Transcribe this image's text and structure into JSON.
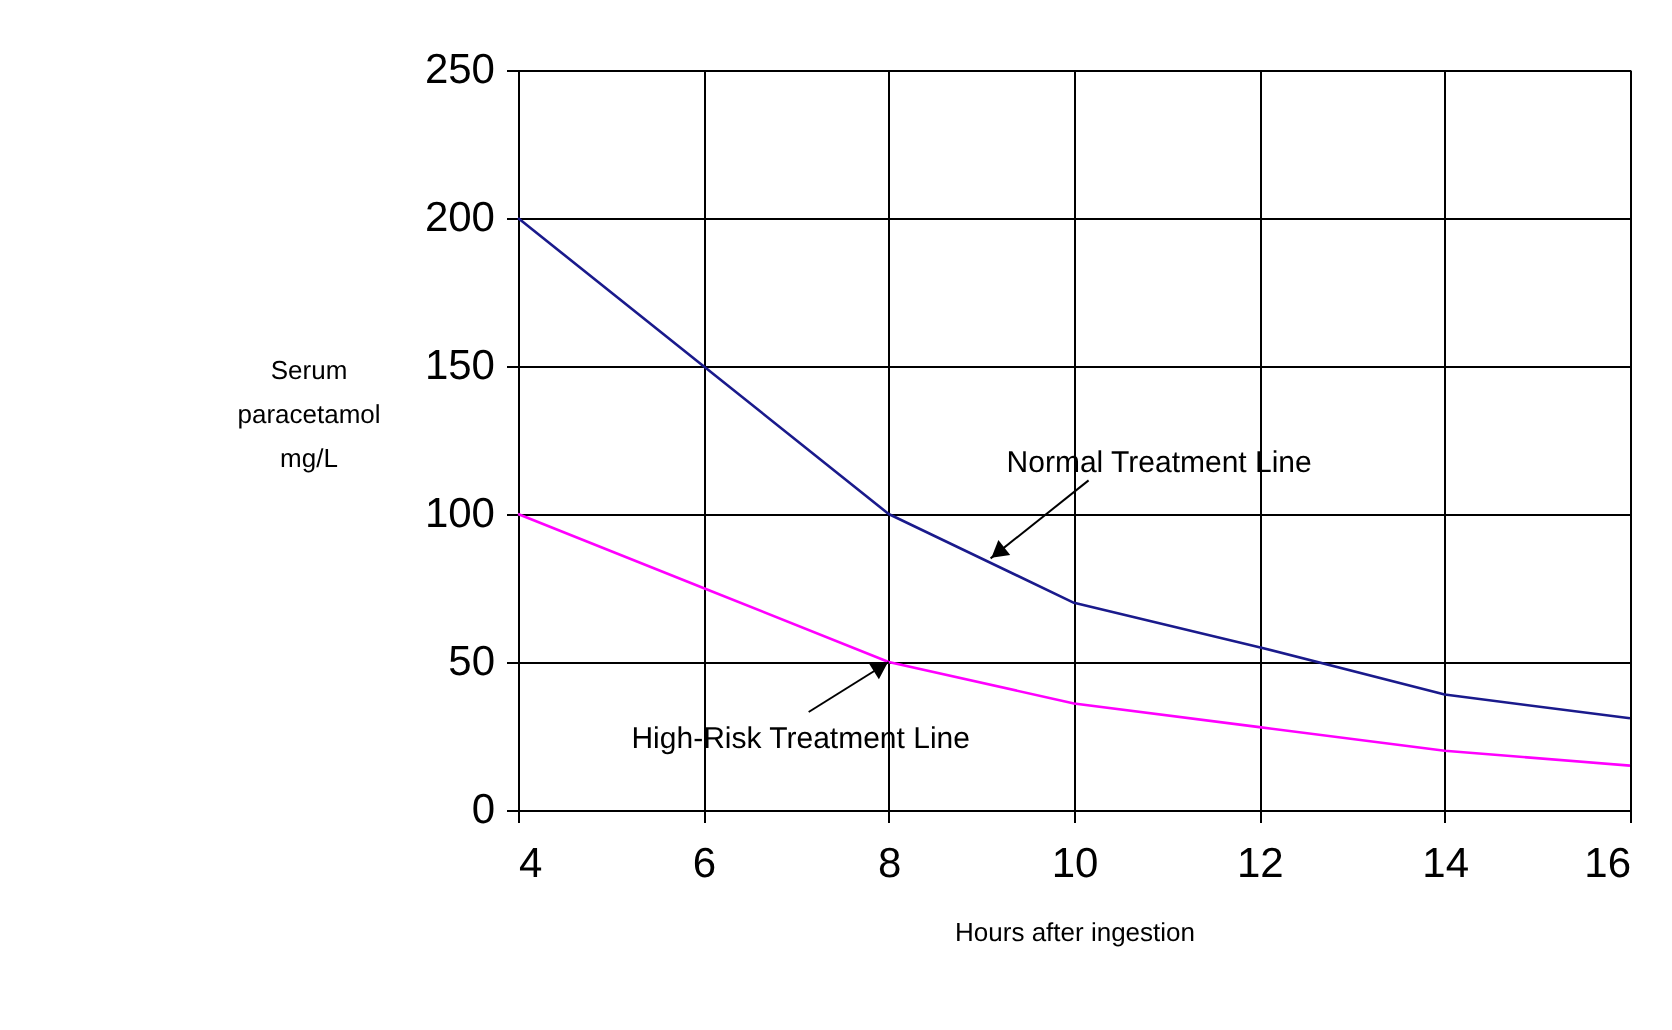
{
  "chart_data": {
    "type": "line",
    "x": [
      4,
      6,
      8,
      10,
      12,
      14,
      16
    ],
    "series": [
      {
        "color": "#1a1a8c",
        "values": [
          200,
          150,
          100,
          70,
          55,
          39,
          31
        ]
      },
      {
        "color": "#ff00ff",
        "values": [
          100,
          75,
          50,
          36,
          28,
          20,
          15
        ]
      }
    ],
    "xlabel": "Hours after ingestion",
    "ylabel": "Serum paracetamol mg/L",
    "xlim": [
      4,
      16
    ],
    "xticks": [
      4,
      6,
      8,
      10,
      12,
      14,
      16
    ],
    "ylim": [
      0,
      250
    ],
    "yticks": [
      0,
      50,
      100,
      150,
      200,
      250
    ],
    "grid": true,
    "legend": false,
    "marker": "none",
    "line_style": "solid",
    "annotations": [
      {
        "text": "Normal Treatment Line",
        "x": 9.1,
        "y": 85
      },
      {
        "text": "High-Risk Treatment Line",
        "x": 8,
        "y": 50
      }
    ]
  }
}
